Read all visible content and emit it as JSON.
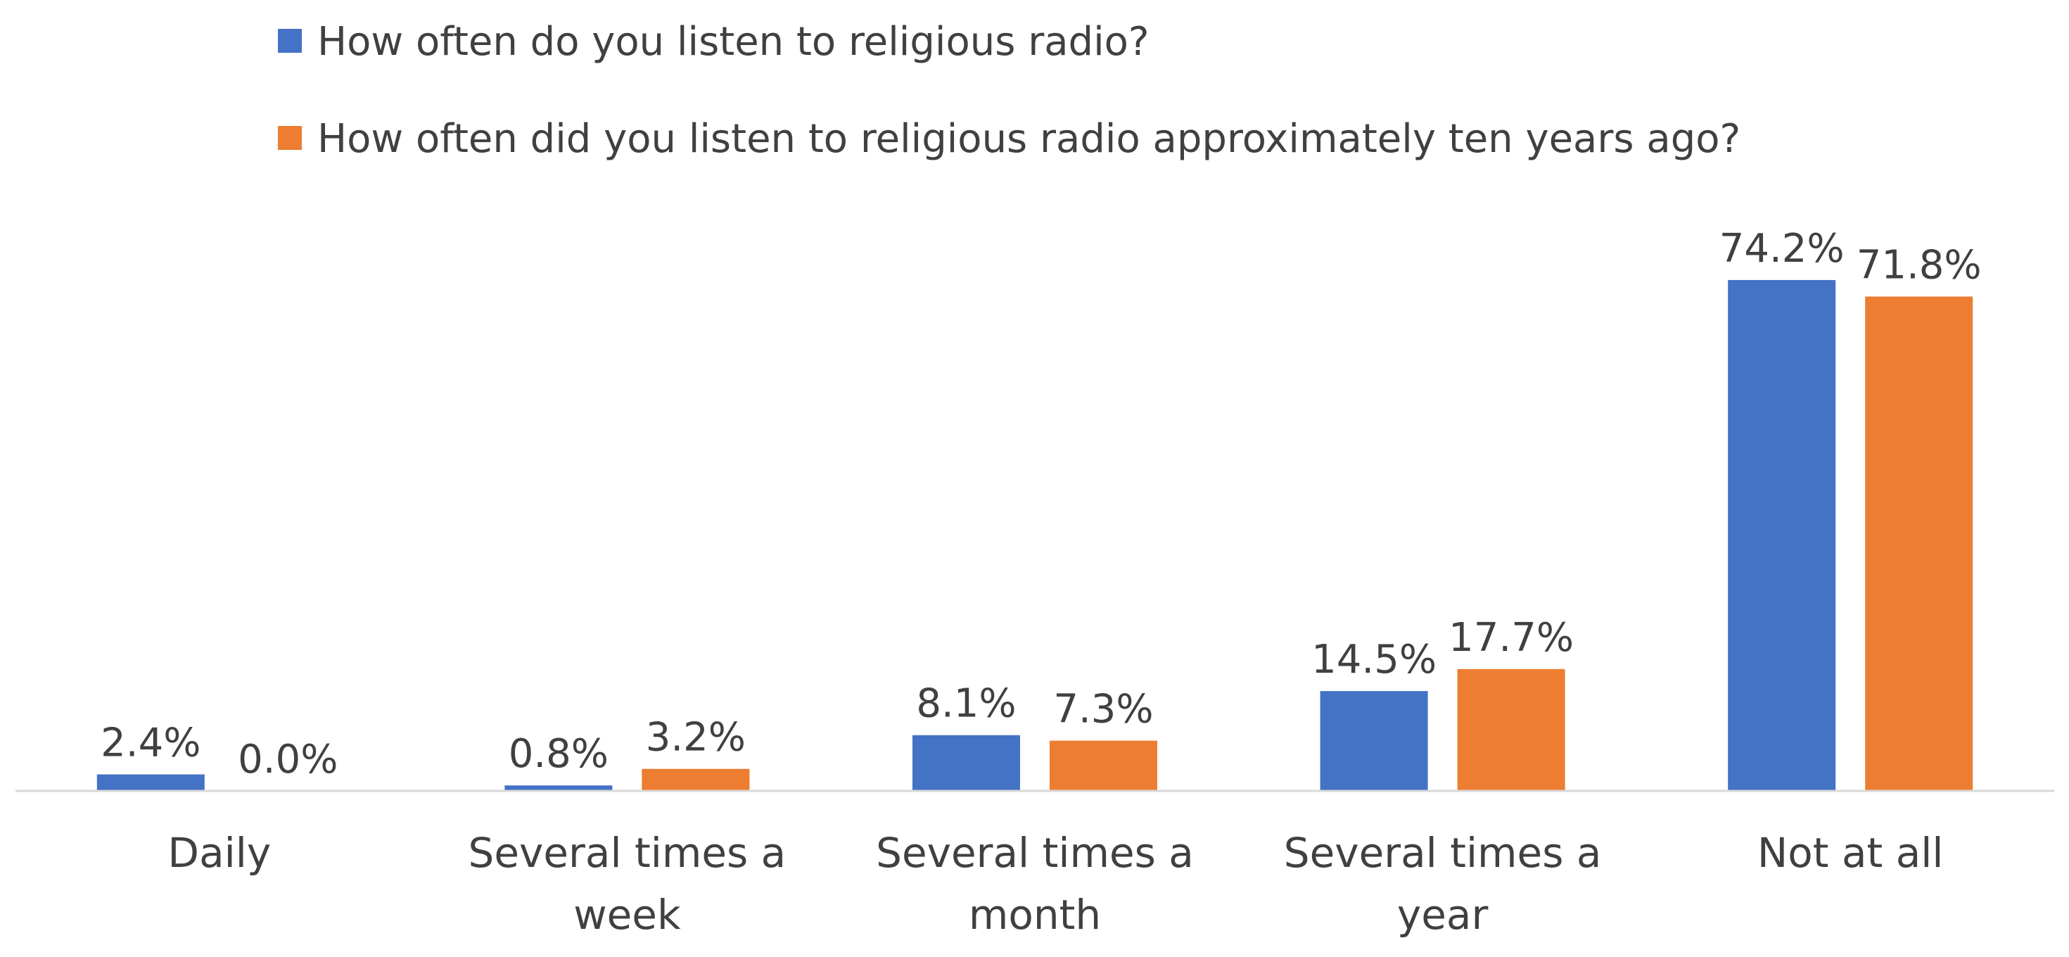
{
  "chart_data": {
    "type": "bar",
    "categories": [
      [
        "Daily"
      ],
      [
        "Several times a",
        "week"
      ],
      [
        "Several times a",
        "month"
      ],
      [
        "Several times a",
        "year"
      ],
      [
        "Not at all"
      ]
    ],
    "series": [
      {
        "name": "How often do you listen to religious radio?",
        "color": "#4472C4",
        "values": [
          2.4,
          0.8,
          8.1,
          14.5,
          74.2
        ],
        "labels": [
          "2.4%",
          "0.8%",
          "8.1%",
          "14.5%",
          "74.2%"
        ]
      },
      {
        "name": "How often did you listen to religious radio approximately ten years ago?",
        "color": "#ED7D31",
        "values": [
          0.0,
          3.2,
          7.3,
          17.7,
          71.8
        ],
        "labels": [
          "0.0%",
          "3.2%",
          "7.3%",
          "17.7%",
          "71.8%"
        ]
      }
    ],
    "legend_position": "top",
    "grid": false,
    "ylim": [
      0,
      80
    ]
  }
}
